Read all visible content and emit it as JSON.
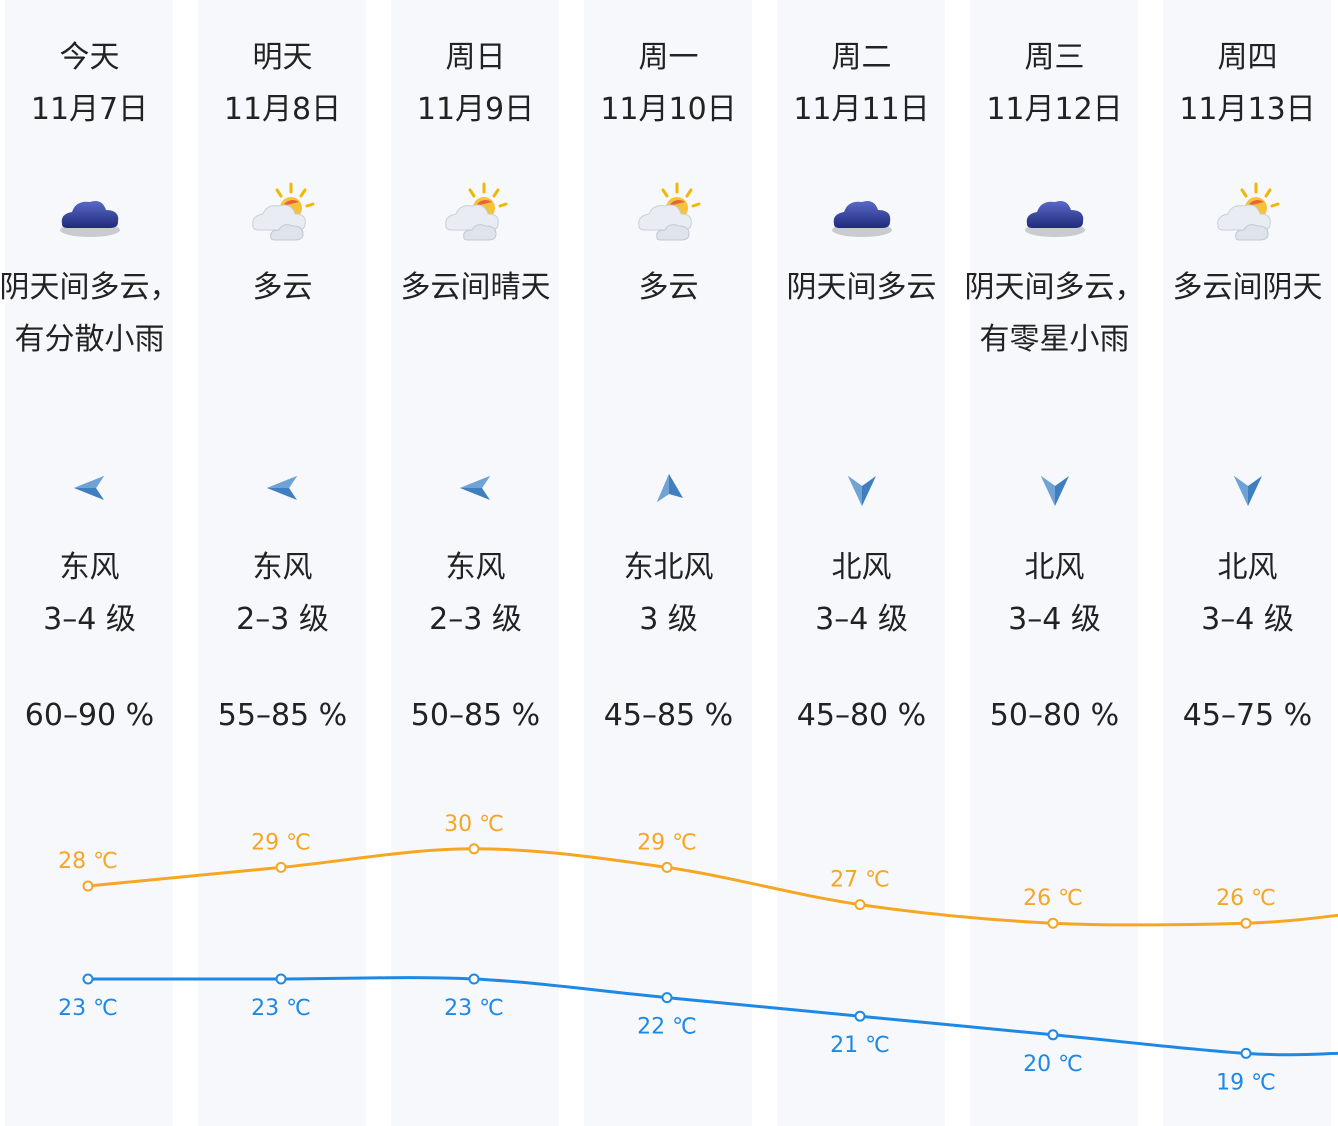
{
  "days": [
    {
      "weekday": "今天",
      "date": "11月7日",
      "weather_icon": "cloudy-icon",
      "desc": "阴天间多云，有分散小雨",
      "wind_icon": "arrow-left-icon",
      "wind_dir": "东风",
      "wind_level": "3–4 级",
      "humidity": "60–90 %",
      "high": "28 ℃",
      "low": "23 ℃"
    },
    {
      "weekday": "明天",
      "date": "11月8日",
      "weather_icon": "partly-cloudy-icon",
      "desc": "多云",
      "wind_icon": "arrow-left-icon",
      "wind_dir": "东风",
      "wind_level": "2–3 级",
      "humidity": "55–85 %",
      "high": "29 ℃",
      "low": "23 ℃"
    },
    {
      "weekday": "周日",
      "date": "11月9日",
      "weather_icon": "partly-cloudy-icon",
      "desc": "多云间晴天",
      "wind_icon": "arrow-left-icon",
      "wind_dir": "东风",
      "wind_level": "2–3 级",
      "humidity": "50–85 %",
      "high": "30 ℃",
      "low": "23 ℃"
    },
    {
      "weekday": "周一",
      "date": "11月10日",
      "weather_icon": "partly-cloudy-icon",
      "desc": "多云",
      "wind_icon": "arrow-down-left-icon",
      "wind_dir": "东北风",
      "wind_level": "3 级",
      "humidity": "45–85 %",
      "high": "29 ℃",
      "low": "22 ℃"
    },
    {
      "weekday": "周二",
      "date": "11月11日",
      "weather_icon": "cloudy-icon",
      "desc": "阴天间多云",
      "wind_icon": "arrow-down-icon",
      "wind_dir": "北风",
      "wind_level": "3–4 级",
      "humidity": "45–80 %",
      "high": "27 ℃",
      "low": "21 ℃"
    },
    {
      "weekday": "周三",
      "date": "11月12日",
      "weather_icon": "cloudy-icon",
      "desc": "阴天间多云，有零星小雨",
      "wind_icon": "arrow-down-icon",
      "wind_dir": "北风",
      "wind_level": "3–4 级",
      "humidity": "50–80 %",
      "high": "26 ℃",
      "low": "20 ℃"
    },
    {
      "weekday": "周四",
      "date": "11月13日",
      "weather_icon": "partly-cloudy-icon",
      "desc": "多云间阴天",
      "wind_icon": "arrow-down-icon",
      "wind_dir": "北风",
      "wind_level": "3–4 级",
      "humidity": "45–75 %",
      "high": "26 ℃",
      "low": "19 ℃"
    }
  ],
  "colors": {
    "high": "#f5a623",
    "low": "#1e88e5",
    "column_bg": "#f6f8fc",
    "wind_arrow": "#3f7fbf"
  },
  "chart_data": {
    "type": "line",
    "categories": [
      "11月7日",
      "11月8日",
      "11月9日",
      "11月10日",
      "11月11日",
      "11月12日",
      "11月13日"
    ],
    "series": [
      {
        "values": [
          28,
          29,
          30,
          29,
          27,
          26,
          26
        ]
      },
      {
        "values": [
          23,
          23,
          23,
          22,
          21,
          20,
          19
        ]
      }
    ]
  }
}
